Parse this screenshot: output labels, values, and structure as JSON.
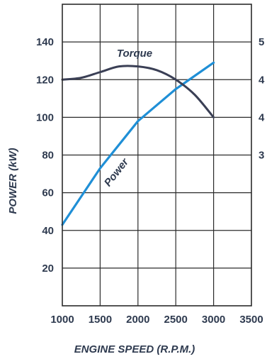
{
  "chart_data": {
    "type": "line",
    "xlabel": "ENGINE SPEED (R.P.M.)",
    "ylabel": "POWER (kW)",
    "xlim": [
      1000,
      3500
    ],
    "ylim": [
      0,
      160
    ],
    "x_ticks": [
      "1000",
      "1500",
      "2000",
      "2500",
      "3000",
      "3500"
    ],
    "y_ticks": [
      "20",
      "40",
      "60",
      "80",
      "100",
      "120",
      "140"
    ],
    "y2_ticks_partial": [
      "5",
      "4",
      "4",
      "3"
    ],
    "grid": true,
    "series": [
      {
        "name": "Power",
        "color": "#1f8fd6",
        "x": [
          1000,
          1500,
          2000,
          2500,
          3000
        ],
        "y": [
          43,
          73,
          98,
          115,
          129
        ]
      },
      {
        "name": "Torque",
        "color": "#3a3f55",
        "x": [
          1000,
          1250,
          1500,
          1750,
          2000,
          2250,
          2500,
          2750,
          3000
        ],
        "y": [
          120,
          121,
          124,
          127,
          127,
          125,
          120,
          112,
          100
        ]
      }
    ]
  }
}
